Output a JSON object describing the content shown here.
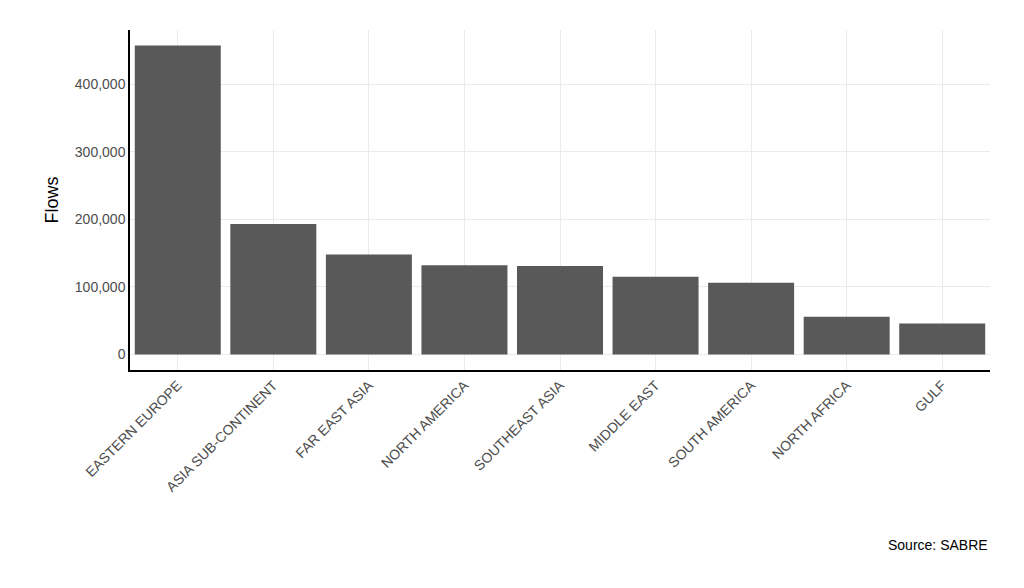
{
  "chart_data": {
    "type": "bar",
    "y_label": "Flows",
    "source": "Source: SABRE",
    "categories": [
      "EASTERN EUROPE",
      "ASIA SUB-CONTINENT",
      "FAR EAST ASIA",
      "NORTH AMERICA",
      "SOUTHEAST ASIA",
      "MIDDLE EAST",
      "SOUTH AMERICA",
      "NORTH AFRICA",
      "GULF"
    ],
    "values": [
      457000,
      193000,
      148000,
      132000,
      131000,
      115000,
      106000,
      56000,
      46000
    ],
    "color": "#595959",
    "ylim": [
      -22850,
      479850
    ],
    "yticks": [
      0,
      {
        "value": 100000,
        "label": "100,000"
      },
      {
        "value": 200000,
        "label": "200,000"
      },
      {
        "value": 300000,
        "label": "300,000"
      },
      {
        "value": 400000,
        "label": "400,000"
      }
    ],
    "grid": true
  }
}
